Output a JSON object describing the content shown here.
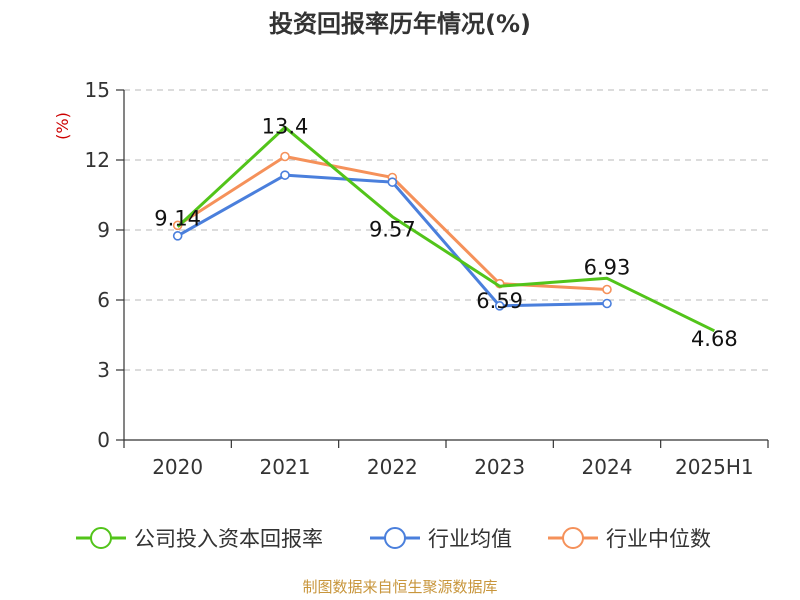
{
  "chart_data": {
    "type": "line",
    "title": "投资回报率历年情况(%)",
    "ylabel": "(%)",
    "xlabel": "",
    "categories": [
      "2020",
      "2021",
      "2022",
      "2023",
      "2024",
      "2025H1"
    ],
    "ylim": [
      0,
      15
    ],
    "yticks": [
      0,
      3,
      6,
      9,
      12,
      15
    ],
    "grid": true,
    "legend_position": "bottom",
    "series": [
      {
        "name": "公司投入资本回报率",
        "color": "#52c41a",
        "values": [
          9.14,
          13.4,
          9.57,
          6.59,
          6.93,
          4.68
        ],
        "labels": [
          "9.14",
          "13.4",
          "9.57",
          "6.59",
          "6.93",
          "4.68"
        ]
      },
      {
        "name": "行业均值",
        "color": "#4a7fdc",
        "values": [
          8.75,
          11.35,
          11.05,
          5.75,
          5.85,
          null
        ]
      },
      {
        "name": "行业中位数",
        "color": "#f5915a",
        "values": [
          9.2,
          12.15,
          11.25,
          6.7,
          6.45,
          null
        ]
      }
    ]
  },
  "source": "制图数据来自恒生聚源数据库"
}
